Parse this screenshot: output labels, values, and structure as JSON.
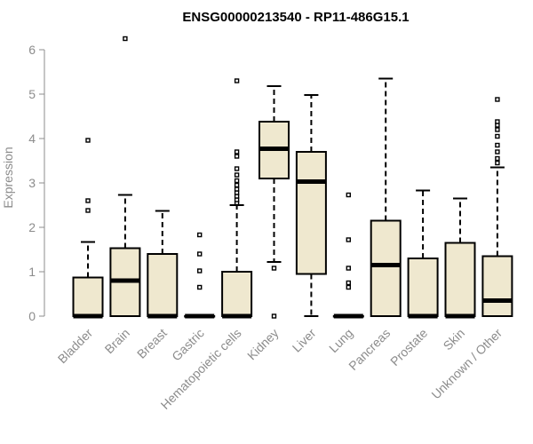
{
  "chart_data": {
    "type": "boxplot",
    "title": "ENSG00000213540 - RP11-486G15.1",
    "xlabel": "",
    "ylabel": "Expression",
    "ylim": [
      0,
      6.3
    ],
    "yticks": [
      "0",
      "1",
      "2",
      "3",
      "4",
      "5",
      "6"
    ],
    "grid": false,
    "legend": "none",
    "box_fill": "#efe8cf",
    "box_stroke": "#000000",
    "label_color": "#8c8c8c",
    "categories": [
      "Bladder",
      "Brain",
      "Breast",
      "Gastric",
      "Hematopoietic cells",
      "Kidney",
      "Liver",
      "Lung",
      "Pancreas",
      "Prostate",
      "Skin",
      "Unknown / Other"
    ],
    "boxes": [
      {
        "category": "Bladder",
        "min": 0,
        "q1": 0,
        "median": 0,
        "q3": 0.87,
        "max": 1.67,
        "outliers": [
          2.38,
          2.6,
          3.96
        ]
      },
      {
        "category": "Brain",
        "min": 0,
        "q1": 0,
        "median": 0.8,
        "q3": 1.53,
        "max": 2.73,
        "outliers": [
          6.25
        ]
      },
      {
        "category": "Breast",
        "min": 0,
        "q1": 0,
        "median": 0,
        "q3": 1.4,
        "max": 2.37,
        "outliers": []
      },
      {
        "category": "Gastric",
        "min": 0,
        "q1": 0,
        "median": 0,
        "q3": 0,
        "max": 0,
        "outliers": [
          0.65,
          1.02,
          1.4,
          1.83
        ]
      },
      {
        "category": "Hematopoietic cells",
        "min": 0,
        "q1": 0,
        "median": 0,
        "q3": 1.0,
        "max": 2.5,
        "outliers": [
          2.55,
          2.62,
          2.7,
          2.78,
          2.86,
          2.95,
          3.05,
          3.18,
          3.32,
          3.6,
          3.7,
          5.3
        ]
      },
      {
        "category": "Kidney",
        "min": 1.22,
        "q1": 3.1,
        "median": 3.77,
        "q3": 4.38,
        "max": 5.18,
        "outliers": [
          0,
          1.08
        ]
      },
      {
        "category": "Liver",
        "min": 0,
        "q1": 0.95,
        "median": 3.03,
        "q3": 3.7,
        "max": 4.98,
        "outliers": []
      },
      {
        "category": "Lung",
        "min": 0,
        "q1": 0,
        "median": 0,
        "q3": 0,
        "max": 0,
        "outliers": [
          0.65,
          0.75,
          1.08,
          1.72,
          2.73
        ]
      },
      {
        "category": "Pancreas",
        "min": 0,
        "q1": 0,
        "median": 1.15,
        "q3": 2.15,
        "max": 5.35,
        "outliers": []
      },
      {
        "category": "Prostate",
        "min": 0,
        "q1": 0,
        "median": 0,
        "q3": 1.3,
        "max": 2.83,
        "outliers": []
      },
      {
        "category": "Skin",
        "min": 0,
        "q1": 0,
        "median": 0,
        "q3": 1.65,
        "max": 2.65,
        "outliers": []
      },
      {
        "category": "Unknown / Other",
        "min": 0,
        "q1": 0,
        "median": 0.35,
        "q3": 1.35,
        "max": 3.35,
        "outliers": [
          3.45,
          3.55,
          3.7,
          3.85,
          4.05,
          4.2,
          4.3,
          4.38,
          4.88
        ]
      }
    ]
  }
}
